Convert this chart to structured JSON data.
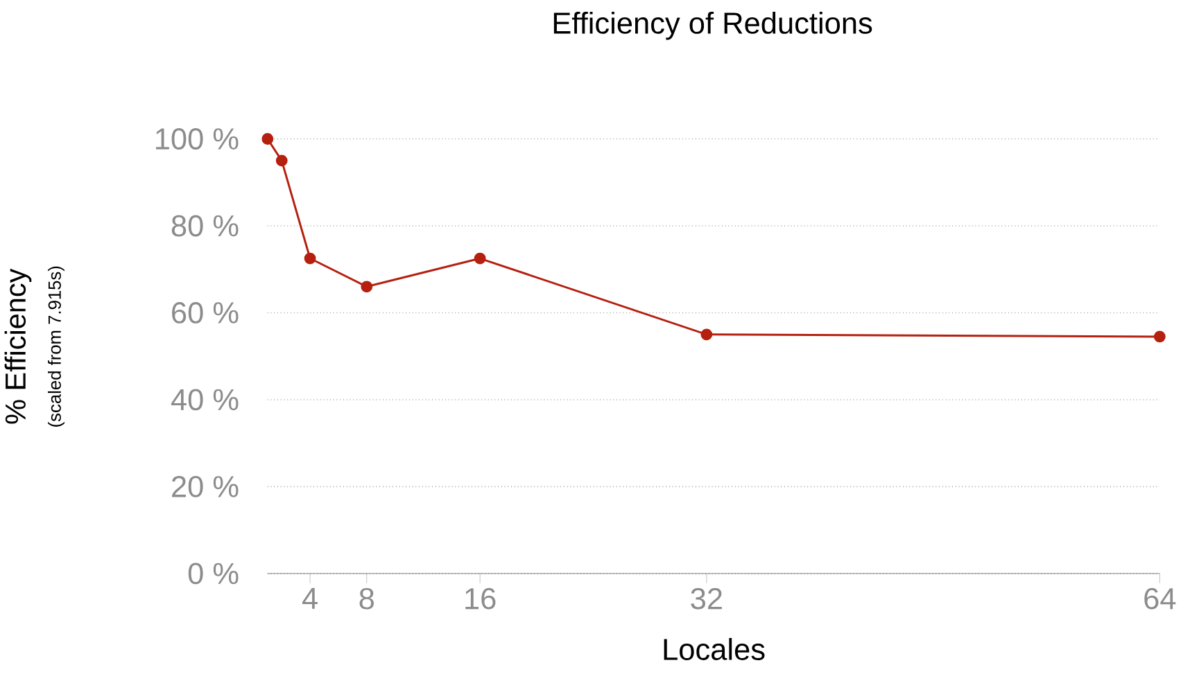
{
  "chart_data": {
    "type": "line",
    "title": "Efficiency of Reductions",
    "xlabel": "Locales",
    "ylabel": "% Efficiency",
    "annotations": [
      "(scaled from 7.915s)"
    ],
    "x": [
      1,
      2,
      4,
      8,
      16,
      32,
      64
    ],
    "series": [
      {
        "color": "#b5200f",
        "values": [
          100,
          95,
          72.5,
          66,
          72.5,
          55,
          54.5
        ]
      }
    ],
    "xlim": [
      1,
      64
    ],
    "xticks": [
      4,
      8,
      16,
      32,
      64
    ],
    "ylim": [
      0,
      100
    ],
    "yticks": [
      {
        "value": 0,
        "label": "0 %"
      },
      {
        "value": 20,
        "label": "20 %"
      },
      {
        "value": 40,
        "label": "40 %"
      },
      {
        "value": 60,
        "label": "60 %"
      },
      {
        "value": 80,
        "label": "80 %"
      },
      {
        "value": 100,
        "label": "100 %"
      }
    ],
    "grid": "y",
    "marker": "circle",
    "line_style": "solid"
  }
}
